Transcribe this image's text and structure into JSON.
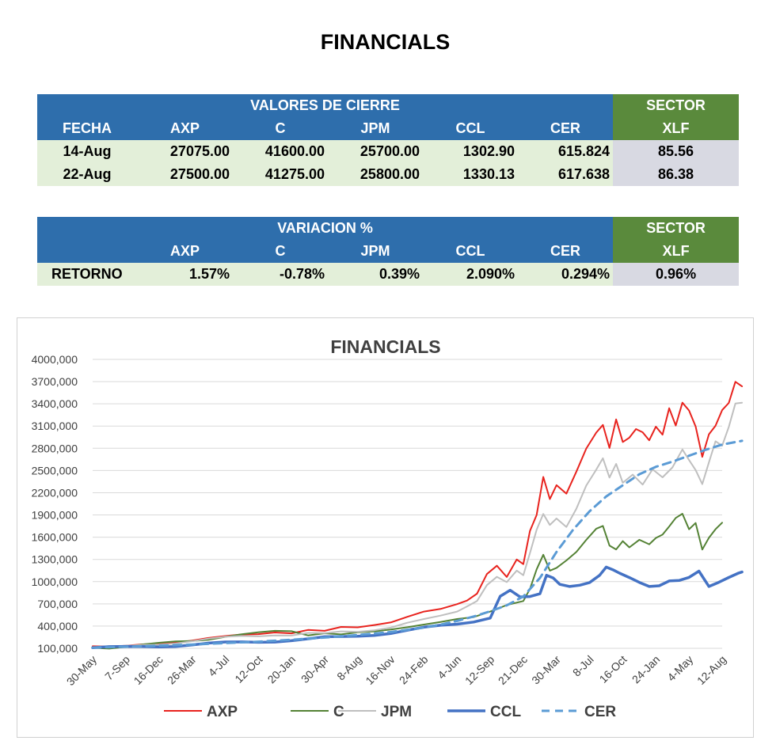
{
  "title": "FINANCIALS",
  "closing_table": {
    "group_header": "VALORES DE CIERRE",
    "sector_header": "SECTOR",
    "columns": [
      "FECHA",
      "AXP",
      "C",
      "JPM",
      "CCL",
      "CER",
      "XLF"
    ],
    "rows": [
      [
        "14-Aug",
        "27075.00",
        "41600.00",
        "25700.00",
        "1302.90",
        "615.824",
        "85.56"
      ],
      [
        "22-Aug",
        "27500.00",
        "41275.00",
        "25800.00",
        "1330.13",
        "617.638",
        "86.38"
      ]
    ]
  },
  "variation_table": {
    "group_header": "VARIACION %",
    "sector_header": "SECTOR",
    "columns": [
      "",
      "AXP",
      "C",
      "JPM",
      "CCL",
      "CER",
      "XLF"
    ],
    "rows": [
      [
        "RETORNO",
        "1.57%",
        "-0.78%",
        "0.39%",
        "2.090%",
        "0.294%",
        "0.96%"
      ]
    ]
  },
  "chart_data": {
    "type": "line",
    "title": "FINANCIALS",
    "xlabel": "",
    "ylabel": "",
    "ylim": [
      100000,
      4000000
    ],
    "y_ticks": [
      100000,
      400000,
      700000,
      1000000,
      1300000,
      1600000,
      1900000,
      2200000,
      2500000,
      2800000,
      3100000,
      3400000,
      3700000,
      4000000
    ],
    "y_tick_labels": [
      "100,000",
      "400,000",
      "700,000",
      "1000,000",
      "1300,000",
      "1600,000",
      "1900,000",
      "2200,000",
      "2500,000",
      "2800,000",
      "3100,000",
      "3400,000",
      "3700,000",
      "4000,000"
    ],
    "x_tick_labels": [
      "30-May",
      "7-Sep",
      "16-Dec",
      "26-Mar",
      "4-Jul",
      "12-Oct",
      "20-Jan",
      "30-Apr",
      "8-Aug",
      "16-Nov",
      "24-Feb",
      "4-Jun",
      "12-Sep",
      "21-Dec",
      "30-Mar",
      "8-Jul",
      "16-Oct",
      "24-Jan",
      "4-May",
      "12-Aug"
    ],
    "grid": true,
    "legend": "bottom",
    "series": [
      {
        "name": "AXP",
        "color": "#e8231e",
        "style": "solid",
        "x": [
          0,
          0.5,
          1,
          1.5,
          2,
          2.5,
          3,
          3.5,
          4,
          4.5,
          5,
          5.5,
          6,
          6.5,
          7,
          7.5,
          8,
          8.5,
          9,
          9.5,
          10,
          10.5,
          11,
          11.3,
          11.6,
          11.9,
          12.2,
          12.5,
          12.8,
          13.0,
          13.2,
          13.4,
          13.6,
          13.8,
          14.0,
          14.3,
          14.6,
          14.9,
          15.2,
          15.4,
          15.6,
          15.8,
          16.0,
          16.2,
          16.4,
          16.6,
          16.8,
          17.0,
          17.2,
          17.4,
          17.6,
          17.8,
          18.0,
          18.2,
          18.4,
          18.6,
          18.8,
          19.0,
          19.2,
          19.4,
          19.6
        ],
        "y": [
          130000,
          110000,
          120000,
          150000,
          170000,
          190000,
          210000,
          230000,
          250000,
          280000,
          300000,
          330000,
          310000,
          340000,
          320000,
          380000,
          390000,
          430000,
          460000,
          520000,
          580000,
          620000,
          700000,
          760000,
          850000,
          1100000,
          1200000,
          1050000,
          1300000,
          1250000,
          1700000,
          1900000,
          2400000,
          2100000,
          2300000,
          2200000,
          2500000,
          2800000,
          3000000,
          3100000,
          2800000,
          3200000,
          2900000,
          2950000,
          3050000,
          3000000,
          2900000,
          3100000,
          3000000,
          3350000,
          3100000,
          3400000,
          3300000,
          3100000,
          2700000,
          3000000,
          3100000,
          3300000,
          3400000,
          3700000,
          3650000
        ]
      },
      {
        "name": "C",
        "color": "#548235",
        "style": "solid",
        "x": [
          0,
          0.5,
          1,
          1.5,
          2,
          2.5,
          3,
          3.5,
          4,
          4.5,
          5,
          5.5,
          6,
          6.5,
          7,
          7.5,
          8,
          8.5,
          9,
          9.5,
          10,
          10.5,
          11,
          11.5,
          12,
          12.5,
          13,
          13.2,
          13.4,
          13.6,
          13.8,
          14.0,
          14.3,
          14.6,
          14.9,
          15.2,
          15.4,
          15.6,
          15.8,
          16.0,
          16.2,
          16.5,
          16.8,
          17.0,
          17.2,
          17.4,
          17.6,
          17.8,
          18.0,
          18.2,
          18.4,
          18.6,
          18.8,
          19.0
        ],
        "y": [
          120000,
          110000,
          120000,
          140000,
          160000,
          190000,
          210000,
          230000,
          260000,
          280000,
          300000,
          330000,
          340000,
          290000,
          310000,
          280000,
          300000,
          320000,
          360000,
          400000,
          430000,
          450000,
          480000,
          510000,
          600000,
          700000,
          750000,
          900000,
          1150000,
          1350000,
          1150000,
          1200000,
          1300000,
          1400000,
          1550000,
          1700000,
          1750000,
          1500000,
          1450000,
          1550000,
          1450000,
          1550000,
          1500000,
          1600000,
          1650000,
          1750000,
          1850000,
          1900000,
          1700000,
          1800000,
          1450000,
          1600000,
          1700000,
          1780000
        ]
      },
      {
        "name": "JPM",
        "color": "#bfbfbf",
        "style": "solid",
        "x": [
          0,
          0.5,
          1,
          1.5,
          2,
          2.5,
          3,
          3.5,
          4,
          4.5,
          5,
          5.5,
          6,
          6.5,
          7,
          7.5,
          8,
          8.5,
          9,
          9.5,
          10,
          10.5,
          11,
          11.3,
          11.6,
          11.9,
          12.2,
          12.5,
          12.8,
          13.0,
          13.2,
          13.4,
          13.6,
          13.8,
          14.0,
          14.3,
          14.6,
          14.9,
          15.2,
          15.4,
          15.6,
          15.8,
          16.0,
          16.3,
          16.6,
          16.9,
          17.2,
          17.5,
          17.8,
          18.0,
          18.2,
          18.4,
          18.6,
          18.8,
          19.0,
          19.2,
          19.4,
          19.6
        ],
        "y": [
          110000,
          110000,
          120000,
          140000,
          160000,
          180000,
          200000,
          220000,
          240000,
          260000,
          270000,
          290000,
          280000,
          300000,
          290000,
          320000,
          330000,
          360000,
          390000,
          440000,
          480000,
          530000,
          600000,
          680000,
          750000,
          950000,
          1050000,
          980000,
          1150000,
          1100000,
          1400000,
          1700000,
          1900000,
          1750000,
          1850000,
          1750000,
          2000000,
          2300000,
          2500000,
          2650000,
          2400000,
          2600000,
          2350000,
          2450000,
          2300000,
          2500000,
          2400000,
          2550000,
          2800000,
          2650000,
          2500000,
          2300000,
          2600000,
          2900000,
          2850000,
          3100000,
          3400000,
          3400000
        ]
      },
      {
        "name": "CCL",
        "color": "#4472c4",
        "style": "thick",
        "x": [
          0,
          0.5,
          1,
          1.5,
          2,
          2.5,
          3,
          3.5,
          4,
          4.5,
          5,
          5.5,
          6,
          6.5,
          7,
          7.5,
          8,
          8.5,
          9,
          9.5,
          10,
          10.5,
          11,
          11.5,
          12,
          12.3,
          12.6,
          12.9,
          13.2,
          13.5,
          13.7,
          13.9,
          14.1,
          14.4,
          14.7,
          15.0,
          15.3,
          15.5,
          15.7,
          15.9,
          16.2,
          16.5,
          16.8,
          17.1,
          17.4,
          17.7,
          18.0,
          18.3,
          18.6,
          18.9,
          19.2,
          19.5,
          19.6
        ],
        "y": [
          110000,
          110000,
          110000,
          120000,
          130000,
          140000,
          150000,
          160000,
          170000,
          180000,
          190000,
          200000,
          210000,
          220000,
          240000,
          250000,
          270000,
          290000,
          310000,
          340000,
          370000,
          400000,
          430000,
          470000,
          520000,
          800000,
          870000,
          780000,
          800000,
          850000,
          1100000,
          1050000,
          950000,
          920000,
          950000,
          1000000,
          1100000,
          1200000,
          1150000,
          1100000,
          1050000,
          1000000,
          950000,
          950000,
          1000000,
          1000000,
          1050000,
          1150000,
          950000,
          1000000,
          1050000,
          1100000,
          1120000
        ]
      },
      {
        "name": "CER",
        "color": "#5b9bd5",
        "style": "dashed",
        "x": [
          0,
          1,
          2,
          3,
          4,
          5,
          6,
          7,
          8,
          9,
          10,
          10.5,
          11,
          11.5,
          12,
          12.5,
          13,
          13.5,
          14,
          14.5,
          15,
          15.5,
          16,
          16.5,
          17,
          17.5,
          18,
          18.5,
          19,
          19.6
        ],
        "y": [
          110000,
          120000,
          135000,
          150000,
          170000,
          190000,
          215000,
          245000,
          280000,
          320000,
          380000,
          420000,
          470000,
          530000,
          600000,
          680000,
          800000,
          1050000,
          1400000,
          1700000,
          1950000,
          2150000,
          2300000,
          2450000,
          2550000,
          2620000,
          2700000,
          2780000,
          2850000,
          2900000
        ]
      }
    ]
  }
}
